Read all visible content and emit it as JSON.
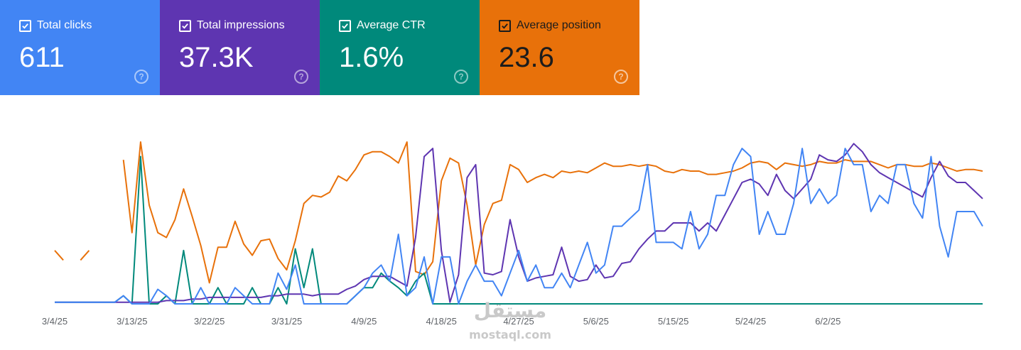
{
  "metrics": [
    {
      "label": "Total clicks",
      "value": "611",
      "color": "#4285f4",
      "checked": true,
      "help_icon": "question-circle-icon"
    },
    {
      "label": "Total impressions",
      "value": "37.3K",
      "color": "#5e35b1",
      "checked": true,
      "help_icon": "question-circle-icon"
    },
    {
      "label": "Average CTR",
      "value": "1.6%",
      "color": "#00897b",
      "checked": true,
      "help_icon": "question-circle-icon"
    },
    {
      "label": "Average position",
      "value": "23.6",
      "color": "#e8710a",
      "checked": true,
      "help_icon": "question-circle-icon"
    }
  ],
  "watermark": {
    "arabic": "مستقل",
    "latin": "mostaql.com"
  },
  "chart_data": {
    "type": "line",
    "x_tick_labels": [
      "3/4/25",
      "3/13/25",
      "3/22/25",
      "3/31/25",
      "4/9/25",
      "4/18/25",
      "4/27/25",
      "5/6/25",
      "5/15/25",
      "5/24/25",
      "6/2/25"
    ],
    "x_start": "3/4/25",
    "y_axis": "hidden (each series independently scaled)",
    "y_scale": [
      0,
      100
    ],
    "grid": false,
    "legend": "metric cards above chart",
    "series": [
      {
        "name": "Total clicks",
        "color": "#4285f4",
        "values": [
          1,
          1,
          1,
          1,
          1,
          1,
          1,
          1,
          5,
          0,
          0,
          0,
          9,
          5,
          0,
          0,
          0,
          10,
          0,
          0,
          0,
          10,
          5,
          0,
          0,
          0,
          19,
          9,
          24,
          0,
          0,
          0,
          0,
          0,
          0,
          5,
          10,
          19,
          24,
          14,
          43,
          5,
          10,
          29,
          0,
          29,
          29,
          0,
          14,
          24,
          14,
          14,
          5,
          19,
          33,
          14,
          24,
          10,
          10,
          19,
          10,
          24,
          38,
          19,
          24,
          48,
          48,
          53,
          58,
          86,
          38,
          38,
          38,
          34,
          57,
          34,
          43,
          67,
          67,
          86,
          96,
          91,
          43,
          57,
          43,
          43,
          62,
          96,
          62,
          71,
          62,
          67,
          96,
          86,
          86,
          57,
          67,
          62,
          86,
          86,
          62,
          53,
          91,
          48,
          29,
          57,
          57,
          57,
          48
        ]
      },
      {
        "name": "Total impressions",
        "color": "#5e35b1",
        "values": [
          1,
          1,
          1,
          1,
          1,
          1,
          1,
          1,
          1,
          1,
          1,
          1,
          1,
          2,
          2,
          2,
          3,
          3,
          4,
          4,
          4,
          4,
          4,
          4,
          4,
          5,
          5,
          6,
          6,
          6,
          5,
          6,
          6,
          6,
          9,
          11,
          15,
          17,
          17,
          17,
          14,
          11,
          41,
          91,
          96,
          33,
          1,
          18,
          78,
          86,
          19,
          18,
          20,
          52,
          29,
          14,
          16,
          17,
          18,
          35,
          17,
          14,
          15,
          24,
          16,
          17,
          25,
          26,
          34,
          40,
          45,
          45,
          50,
          50,
          50,
          45,
          50,
          45,
          55,
          65,
          75,
          77,
          74,
          67,
          80,
          70,
          65,
          71,
          77,
          92,
          89,
          88,
          92,
          99,
          94,
          86,
          81,
          78,
          75,
          72,
          69,
          66,
          78,
          88,
          79,
          75,
          75,
          70,
          65
        ]
      },
      {
        "name": "Average CTR",
        "color": "#00897b",
        "values": [
          1,
          1,
          1,
          1,
          1,
          1,
          1,
          1,
          5,
          0,
          91,
          0,
          0,
          5,
          0,
          33,
          0,
          0,
          0,
          10,
          0,
          0,
          0,
          10,
          0,
          0,
          10,
          0,
          34,
          10,
          34,
          0,
          0,
          0,
          0,
          5,
          10,
          10,
          19,
          14,
          10,
          5,
          14,
          19,
          0,
          0,
          0,
          0,
          0,
          0,
          0,
          0,
          0,
          0,
          0,
          0,
          0,
          0,
          0,
          0,
          0,
          0,
          0,
          0,
          0,
          0,
          0,
          0,
          0,
          0,
          0,
          0,
          0,
          0,
          0,
          0,
          0,
          0,
          0,
          0,
          0,
          0,
          0,
          0,
          0,
          0,
          0,
          0,
          0,
          0,
          0,
          0,
          0,
          0,
          0,
          0,
          0,
          0,
          0,
          0,
          0,
          0,
          0,
          0,
          0,
          0,
          0,
          0,
          0
        ]
      },
      {
        "name": "Average position",
        "color": "#e8710a",
        "values": [
          33,
          27,
          null,
          27,
          33,
          null,
          null,
          null,
          89,
          44,
          100,
          61,
          44,
          41,
          52,
          71,
          54,
          36,
          13,
          35,
          35,
          51,
          37,
          30,
          39,
          40,
          28,
          21,
          39,
          62,
          67,
          66,
          69,
          79,
          76,
          83,
          92,
          94,
          94,
          91,
          87,
          100,
          20,
          18,
          26,
          76,
          90,
          87,
          61,
          24,
          49,
          62,
          64,
          86,
          83,
          75,
          78,
          80,
          78,
          82,
          81,
          82,
          81,
          84,
          87,
          85,
          85,
          86,
          85,
          86,
          85,
          82,
          81,
          83,
          82,
          82,
          80,
          80,
          81,
          82,
          84,
          87,
          88,
          87,
          83,
          87,
          86,
          85,
          86,
          88,
          87,
          87,
          89,
          88,
          88,
          88,
          86,
          84,
          86,
          86,
          85,
          85,
          87,
          86,
          84,
          82,
          83,
          83,
          82
        ]
      }
    ]
  }
}
